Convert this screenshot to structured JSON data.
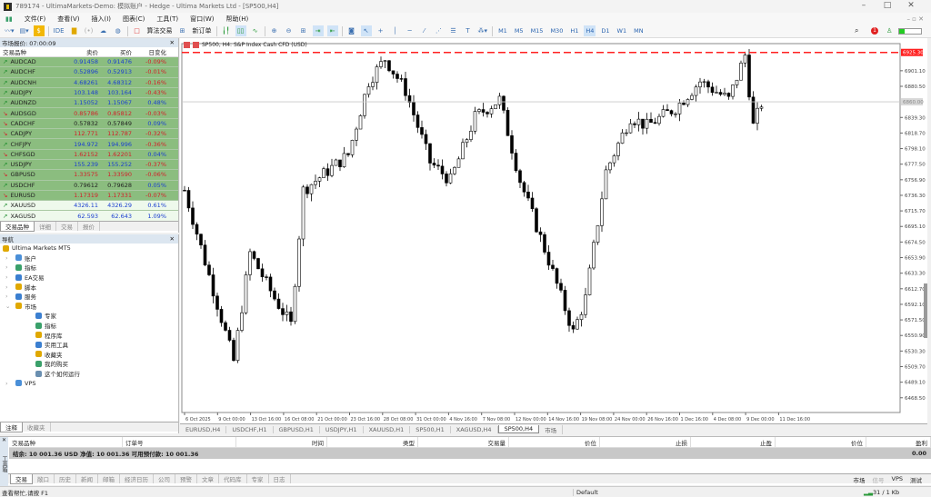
{
  "window": {
    "title": "789174 - UltimaMarkets-Demo: 模拟账户 - Hedge - Ultima Markets Ltd - [SP500,H4]"
  },
  "menu": [
    "文件(F)",
    "查看(V)",
    "插入(I)",
    "图表(C)",
    "工具(T)",
    "窗口(W)",
    "帮助(H)"
  ],
  "toolbar": {
    "ide": "IDE",
    "algo": "算法交易",
    "new_order": "新订单",
    "timeframes": [
      "M1",
      "M5",
      "M15",
      "M30",
      "H1",
      "H4",
      "D1",
      "W1",
      "MN"
    ],
    "active_tf": "H4",
    "notif_count": "1"
  },
  "market_watch": {
    "title": "市场报价: 07:00:09",
    "headers": [
      "交易品种",
      "卖价",
      "买价",
      "日变化"
    ],
    "rows": [
      {
        "sym": "AUDCAD",
        "bid": "0.91458",
        "ask": "0.91476",
        "chg": "-0.09%",
        "dir": "up",
        "pc": "blue",
        "cc": "red",
        "bg": "g"
      },
      {
        "sym": "AUDCHF",
        "bid": "0.52896",
        "ask": "0.52913",
        "chg": "-0.01%",
        "dir": "up",
        "pc": "blue",
        "cc": "red",
        "bg": "g"
      },
      {
        "sym": "AUDCNH",
        "bid": "4.68261",
        "ask": "4.68312",
        "chg": "-0.16%",
        "dir": "up",
        "pc": "blue",
        "cc": "red",
        "bg": "g"
      },
      {
        "sym": "AUDJPY",
        "bid": "103.148",
        "ask": "103.164",
        "chg": "-0.43%",
        "dir": "up",
        "pc": "blue",
        "cc": "red",
        "bg": "g"
      },
      {
        "sym": "AUDNZD",
        "bid": "1.15052",
        "ask": "1.15067",
        "chg": "0.48%",
        "dir": "up",
        "pc": "blue",
        "cc": "blue",
        "bg": "g"
      },
      {
        "sym": "AUDSGD",
        "bid": "0.85786",
        "ask": "0.85812",
        "chg": "-0.03%",
        "dir": "down",
        "pc": "red",
        "cc": "red",
        "bg": "g"
      },
      {
        "sym": "CADCHF",
        "bid": "0.57832",
        "ask": "0.57849",
        "chg": "0.09%",
        "dir": "down",
        "pc": "blk",
        "cc": "blue",
        "bg": "g"
      },
      {
        "sym": "CADJPY",
        "bid": "112.771",
        "ask": "112.787",
        "chg": "-0.32%",
        "dir": "down",
        "pc": "red",
        "cc": "red",
        "bg": "g"
      },
      {
        "sym": "CHFJPY",
        "bid": "194.972",
        "ask": "194.996",
        "chg": "-0.36%",
        "dir": "up",
        "pc": "blue",
        "cc": "red",
        "bg": "g"
      },
      {
        "sym": "CHFSGD",
        "bid": "1.62152",
        "ask": "1.62201",
        "chg": "0.04%",
        "dir": "down",
        "pc": "red",
        "cc": "blue",
        "bg": "g"
      },
      {
        "sym": "USDJPY",
        "bid": "155.239",
        "ask": "155.252",
        "chg": "-0.37%",
        "dir": "up",
        "pc": "blue",
        "cc": "red",
        "bg": "g"
      },
      {
        "sym": "GBPUSD",
        "bid": "1.33575",
        "ask": "1.33590",
        "chg": "-0.06%",
        "dir": "down",
        "pc": "red",
        "cc": "red",
        "bg": "g"
      },
      {
        "sym": "USDCHF",
        "bid": "0.79612",
        "ask": "0.79628",
        "chg": "0.05%",
        "dir": "up",
        "pc": "blk",
        "cc": "blue",
        "bg": "g"
      },
      {
        "sym": "EURUSD",
        "bid": "1.17319",
        "ask": "1.17331",
        "chg": "-0.07%",
        "dir": "down",
        "pc": "red",
        "cc": "red",
        "bg": "g"
      },
      {
        "sym": "XAUUSD",
        "bid": "4326.11",
        "ask": "4326.29",
        "chg": "0.61%",
        "dir": "up",
        "pc": "blue",
        "cc": "blue",
        "bg": "w"
      },
      {
        "sym": "XAGUSD",
        "bid": "62.593",
        "ask": "62.643",
        "chg": "1.09%",
        "dir": "up",
        "pc": "blue",
        "cc": "blue",
        "bg": "w"
      }
    ],
    "tabs": [
      "交易品种",
      "详细",
      "交易",
      "报价"
    ]
  },
  "navigator": {
    "title": "导航",
    "root": "Ultima Markets MT5",
    "items": [
      {
        "label": "账户",
        "lvl": 0,
        "icon": "accounts-icon",
        "color": "#4a8fd8"
      },
      {
        "label": "指标",
        "lvl": 0,
        "icon": "indicators-icon",
        "color": "#3aa06a"
      },
      {
        "label": "EA交易",
        "lvl": 0,
        "icon": "expert-icon",
        "color": "#3b7fd0"
      },
      {
        "label": "脚本",
        "lvl": 0,
        "icon": "script-icon",
        "color": "#e0a800"
      },
      {
        "label": "服务",
        "lvl": 0,
        "icon": "service-icon",
        "color": "#3b7fd0"
      },
      {
        "label": "市场",
        "lvl": 0,
        "icon": "market-icon",
        "color": "#e0a800"
      },
      {
        "label": "专家",
        "lvl": 1,
        "icon": "expert-icon",
        "color": "#3b7fd0"
      },
      {
        "label": "指标",
        "lvl": 1,
        "icon": "indicators-icon",
        "color": "#3aa06a"
      },
      {
        "label": "程序库",
        "lvl": 1,
        "icon": "library-icon",
        "color": "#e0a800"
      },
      {
        "label": "实用工具",
        "lvl": 1,
        "icon": "utilities-icon",
        "color": "#3b7fd0"
      },
      {
        "label": "收藏夹",
        "lvl": 1,
        "icon": "star-icon",
        "color": "#e0a800"
      },
      {
        "label": "我的购买",
        "lvl": 1,
        "icon": "purchases-icon",
        "color": "#3aa06a"
      },
      {
        "label": "这个如何运行",
        "lvl": 1,
        "icon": "doc-icon",
        "color": "#6a8fb0"
      },
      {
        "label": "VPS",
        "lvl": 0,
        "icon": "vps-icon",
        "color": "#4a8fd8"
      }
    ],
    "tabs": [
      "注释",
      "收藏夹"
    ]
  },
  "chart": {
    "title": "SP500, H4:  S&P Index Cash CFD (USD)",
    "ask_line": "6925.30",
    "bid_line": "6860.00",
    "accent_red": "#ff2020",
    "y_labels": [
      "6901.10",
      "6880.50",
      "6839.30",
      "6818.70",
      "6798.10",
      "6777.50",
      "6756.90",
      "6736.30",
      "6715.70",
      "6695.10",
      "6674.50",
      "6653.90",
      "6633.30",
      "6612.70",
      "6592.10",
      "6571.50",
      "6550.90",
      "6530.30",
      "6509.70",
      "6489.10",
      "6468.50"
    ],
    "x_labels": [
      "6 Oct 2025",
      "9 Oct 00:00",
      "13 Oct 16:00",
      "16 Oct 08:00",
      "21 Oct 00:00",
      "23 Oct 16:00",
      "28 Oct 08:00",
      "31 Oct 00:00",
      "4 Nov 16:00",
      "7 Nov 08:00",
      "12 Nov 00:00",
      "14 Nov 16:00",
      "19 Nov 08:00",
      "24 Nov 00:00",
      "26 Nov 16:00",
      "1 Dec 16:00",
      "4 Dec 08:00",
      "9 Dec 00:00",
      "11 Dec 16:00"
    ],
    "price_path": [
      [
        0,
        6743
      ],
      [
        12,
        6517
      ],
      [
        16,
        6660
      ],
      [
        22,
        6600
      ],
      [
        26,
        6565
      ],
      [
        29,
        6743
      ],
      [
        40,
        6790
      ],
      [
        45,
        6887
      ],
      [
        49,
        6917
      ],
      [
        54,
        6875
      ],
      [
        60,
        6780
      ],
      [
        65,
        6756
      ],
      [
        71,
        6840
      ],
      [
        77,
        6863
      ],
      [
        82,
        6756
      ],
      [
        89,
        6650
      ],
      [
        95,
        6555
      ],
      [
        98,
        6600
      ],
      [
        103,
        6768
      ],
      [
        109,
        6840
      ],
      [
        113,
        6828
      ],
      [
        120,
        6852
      ],
      [
        126,
        6887
      ],
      [
        133,
        6863
      ],
      [
        137,
        6922
      ],
      [
        139,
        6828
      ],
      [
        141,
        6858
      ]
    ],
    "tabs": [
      "EURUSD,H4",
      "USDCHF,H1",
      "GBPUSD,H1",
      "USDJPY,H1",
      "XAUUSD,H1",
      "SP500,H1",
      "XAGUSD,H4",
      "SP500,H4",
      "市场"
    ],
    "active_tab": "SP500,H4"
  },
  "toolbox": {
    "headers": [
      "交易品种",
      "订单号",
      "时间",
      "类型",
      "交易量",
      "价位",
      "止损",
      "止盈",
      "价位",
      "盈利"
    ],
    "balance": "结余: 10 001.36 USD  净值: 10 001.36  可用预付款: 10 001.36",
    "profit": "0.00",
    "tabs": [
      "交易",
      "敞口",
      "历史",
      "新闻",
      "邮箱",
      "经济日历",
      "公司",
      "预警",
      "文章",
      "代码库",
      "专家",
      "日志"
    ],
    "right": [
      "市场",
      "信号",
      "VPS",
      "测试"
    ],
    "side_label": "工具箱"
  },
  "status": {
    "help": "查看帮忙,请按 F1",
    "profile": "Default",
    "traffic": "31 / 1 Kb"
  }
}
